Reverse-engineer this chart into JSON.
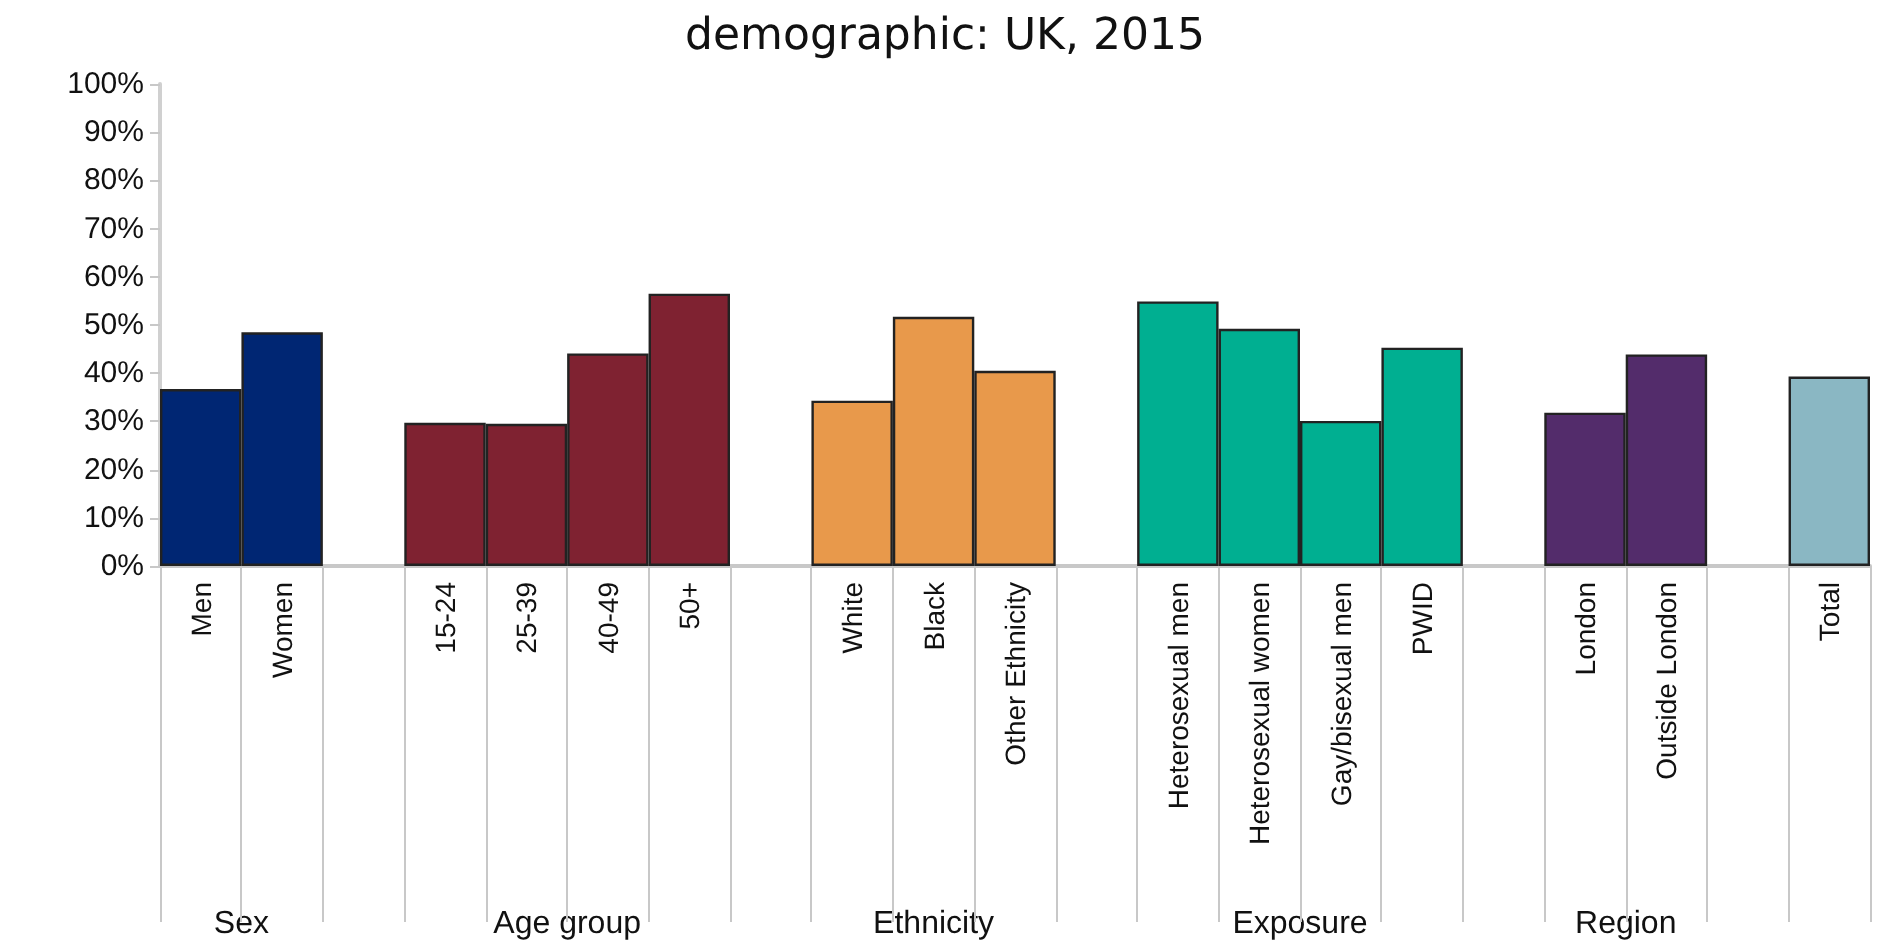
{
  "chart_data": {
    "type": "bar",
    "title": "demographic: UK, 2015",
    "categories": [
      "Men",
      "Women",
      null,
      "15-24",
      "25-39",
      "40-49",
      "50+",
      null,
      "White",
      "Black",
      "Other Ethnicity",
      null,
      "Heterosexual men",
      "Heterosexual women",
      "Gay/bisexual men",
      "PWID",
      null,
      "London",
      "Outside London",
      null,
      "Total"
    ],
    "values": [
      36.7,
      48.5,
      null,
      29.7,
      29.5,
      44.1,
      56.5,
      null,
      34.3,
      51.7,
      40.5,
      null,
      54.9,
      49.2,
      30.1,
      45.3,
      null,
      31.8,
      43.9,
      null,
      39.3
    ],
    "colors": [
      "#002673",
      "#002673",
      null,
      "#7f2231",
      "#7f2231",
      "#7f2231",
      "#7f2231",
      null,
      "#e8994b",
      "#e8994b",
      "#e8994b",
      null,
      "#00af91",
      "#00af91",
      "#00af91",
      "#00af91",
      null,
      "#532c6b",
      "#532c6b",
      null,
      "#8ab7c3"
    ],
    "annotations": [
      "Sex",
      "Age group",
      "Ethnicity",
      "Exposure",
      "Region"
    ],
    "ylim": [
      0,
      100
    ],
    "yticks": [
      {
        "value": 0,
        "label": "0%"
      },
      {
        "value": 10,
        "label": "10%"
      },
      {
        "value": 20,
        "label": "20%"
      },
      {
        "value": 30,
        "label": "30%"
      },
      {
        "value": 40,
        "label": "40%"
      },
      {
        "value": 50,
        "label": "50%"
      },
      {
        "value": 60,
        "label": "60%"
      },
      {
        "value": 70,
        "label": "70%"
      },
      {
        "value": 80,
        "label": "80%"
      },
      {
        "value": 90,
        "label": "90%"
      },
      {
        "value": 100,
        "label": "100%"
      }
    ],
    "grid": false
  }
}
